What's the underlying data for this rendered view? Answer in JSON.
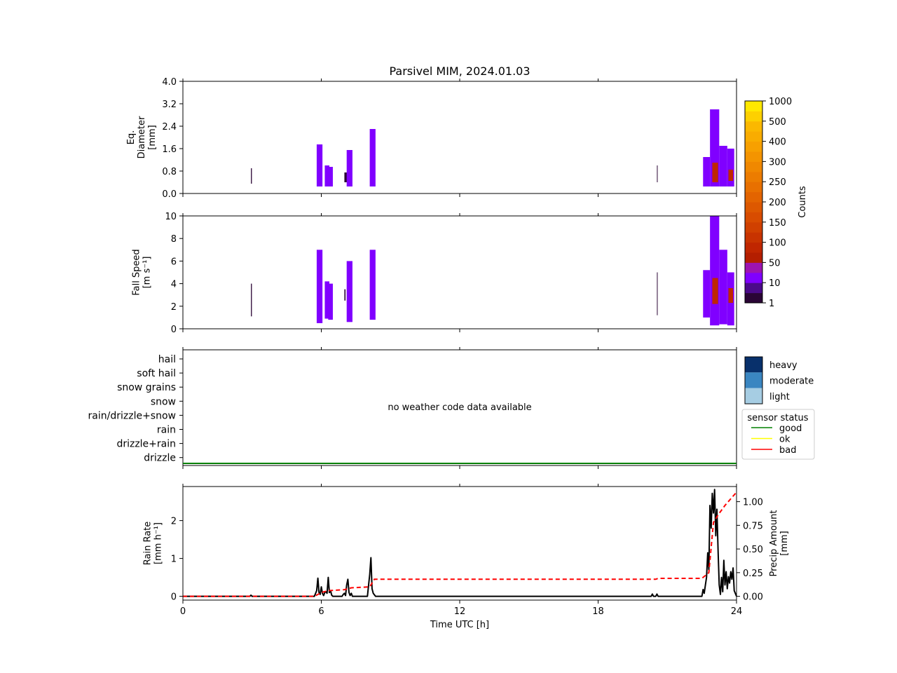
{
  "figure": {
    "title": "Parsivel MIM, 2024.01.03",
    "xlabel": "Time UTC [h]",
    "xticks": [
      0,
      6,
      12,
      18,
      24
    ],
    "xlim": [
      0,
      24
    ]
  },
  "colors": {
    "counts_colorbar": [
      "#2a0535",
      "#4b0a8a",
      "#8000ff",
      "#9d14b0",
      "#b41e00",
      "#c02600",
      "#c83300",
      "#d04000",
      "#d84c00",
      "#dd5800",
      "#e36400",
      "#e87000",
      "#ec7c00",
      "#f08800",
      "#f49400",
      "#f7a000",
      "#f9ac00",
      "#fbb800",
      "#fdd000",
      "#ffe800"
    ],
    "intensity": {
      "light": "#a6cde3",
      "moderate": "#3a86c1",
      "heavy": "#08306b"
    },
    "status": {
      "good": "#008000",
      "ok": "#ffff00",
      "bad": "#ff0000"
    }
  },
  "panels": {
    "diameter": {
      "ylabel": [
        "Eq.",
        "Diameter",
        "[mm]"
      ],
      "yticks": [
        "0.0",
        "0.8",
        "1.6",
        "2.4",
        "3.2",
        "4.0"
      ],
      "ylim": [
        0,
        4
      ]
    },
    "fallspeed": {
      "ylabel": [
        "Fall Speed",
        "[m s⁻¹]"
      ],
      "yticks": [
        "0",
        "2",
        "4",
        "6",
        "8",
        "10"
      ],
      "ylim": [
        0,
        10
      ]
    },
    "weather": {
      "categories": [
        "hail",
        "soft hail",
        "snow grains",
        "snow",
        "rain/drizzle+snow",
        "rain",
        "drizzle+rain",
        "drizzle"
      ],
      "no_data_text": "no weather code data available",
      "intensity_legend": [
        "heavy",
        "moderate",
        "light"
      ],
      "status_legend_title": "sensor status",
      "status_legend": [
        "good",
        "ok",
        "bad"
      ]
    },
    "rain": {
      "ylabel": [
        "Rain Rate",
        "[mm h⁻¹]"
      ],
      "yticks": [
        "0",
        "1",
        "2"
      ],
      "ylim": [
        -0.1,
        2.9
      ],
      "y2label": [
        "Precip Amount",
        "[mm]"
      ],
      "y2ticks": [
        "0.00",
        "0.25",
        "0.50",
        "0.75",
        "1.00"
      ],
      "y2lim": [
        -0.04,
        1.16
      ]
    }
  },
  "colorbar": {
    "label": "Counts",
    "ticks": [
      "1",
      "10",
      "50",
      "100",
      "150",
      "200",
      "250",
      "300",
      "400",
      "500",
      "1000"
    ]
  },
  "chart_data": [
    {
      "type": "heatmap",
      "title": "Parsivel MIM, 2024.01.03",
      "ylabel": "Eq. Diameter [mm]",
      "ylim": [
        0,
        4
      ],
      "xlim": [
        0,
        24
      ],
      "bursts": [
        {
          "x": [
            2.95,
            2.99
          ],
          "y": [
            0.35,
            0.9
          ],
          "level": 0
        },
        {
          "x": [
            5.8,
            6.05
          ],
          "y": [
            0.25,
            1.75
          ],
          "level": 2
        },
        {
          "x": [
            6.15,
            6.35
          ],
          "y": [
            0.25,
            1.0
          ],
          "level": 2
        },
        {
          "x": [
            6.3,
            6.5
          ],
          "y": [
            0.25,
            0.95
          ],
          "level": 2
        },
        {
          "x": [
            7.0,
            7.15
          ],
          "y": [
            0.4,
            0.75
          ],
          "level": 0
        },
        {
          "x": [
            7.1,
            7.35
          ],
          "y": [
            0.25,
            1.55
          ],
          "level": 2
        },
        {
          "x": [
            8.1,
            8.35
          ],
          "y": [
            0.25,
            2.3
          ],
          "level": 2
        },
        {
          "x": [
            20.55,
            20.58
          ],
          "y": [
            0.4,
            1.0
          ],
          "level": 0
        },
        {
          "x": [
            22.55,
            22.85
          ],
          "y": [
            0.25,
            1.3
          ],
          "level": 2
        },
        {
          "x": [
            22.85,
            23.25
          ],
          "y": [
            0.25,
            3.0
          ],
          "level": 2
        },
        {
          "x": [
            23.25,
            23.6
          ],
          "y": [
            0.25,
            1.7
          ],
          "level": 2
        },
        {
          "x": [
            23.6,
            23.9
          ],
          "y": [
            0.25,
            1.6
          ],
          "level": 2
        },
        {
          "x": [
            22.95,
            23.2
          ],
          "y": [
            0.4,
            1.1
          ],
          "level": 4
        },
        {
          "x": [
            23.65,
            23.85
          ],
          "y": [
            0.45,
            0.85
          ],
          "level": 4
        }
      ]
    },
    {
      "type": "heatmap",
      "ylabel": "Fall Speed [m s⁻¹]",
      "ylim": [
        0,
        10
      ],
      "xlim": [
        0,
        24
      ],
      "bursts": [
        {
          "x": [
            2.95,
            2.99
          ],
          "y": [
            1.1,
            4.0
          ],
          "level": 0
        },
        {
          "x": [
            5.8,
            6.05
          ],
          "y": [
            0.5,
            7.0
          ],
          "level": 2
        },
        {
          "x": [
            6.15,
            6.35
          ],
          "y": [
            0.9,
            4.2
          ],
          "level": 2
        },
        {
          "x": [
            6.3,
            6.5
          ],
          "y": [
            0.8,
            4.0
          ],
          "level": 2
        },
        {
          "x": [
            7.0,
            7.05
          ],
          "y": [
            2.5,
            3.5
          ],
          "level": 0
        },
        {
          "x": [
            7.1,
            7.35
          ],
          "y": [
            0.6,
            6.0
          ],
          "level": 2
        },
        {
          "x": [
            8.1,
            8.35
          ],
          "y": [
            0.8,
            7.0
          ],
          "level": 2
        },
        {
          "x": [
            20.55,
            20.58
          ],
          "y": [
            1.2,
            5.0
          ],
          "level": 0
        },
        {
          "x": [
            22.55,
            22.85
          ],
          "y": [
            1.0,
            5.2
          ],
          "level": 2
        },
        {
          "x": [
            22.85,
            23.25
          ],
          "y": [
            0.3,
            10.0
          ],
          "level": 2
        },
        {
          "x": [
            23.25,
            23.6
          ],
          "y": [
            0.4,
            7.0
          ],
          "level": 2
        },
        {
          "x": [
            23.6,
            23.9
          ],
          "y": [
            0.3,
            5.0
          ],
          "level": 2
        },
        {
          "x": [
            22.95,
            23.2
          ],
          "y": [
            2.2,
            4.5
          ],
          "level": 4
        },
        {
          "x": [
            23.65,
            23.85
          ],
          "y": [
            2.3,
            3.6
          ],
          "level": 4
        }
      ]
    },
    {
      "type": "line",
      "ylabel": "Rain Rate [mm h⁻¹]",
      "xlim": [
        0,
        24
      ],
      "series": [
        {
          "axis": "left",
          "style": "solid-black",
          "x": [
            0,
            2.9,
            2.95,
            3.0,
            5.7,
            5.8,
            5.85,
            5.9,
            5.95,
            6.0,
            6.05,
            6.1,
            6.15,
            6.2,
            6.25,
            6.3,
            6.35,
            6.4,
            6.45,
            6.5,
            6.55,
            6.9,
            6.95,
            7.0,
            7.05,
            7.1,
            7.15,
            7.2,
            7.25,
            7.3,
            7.35,
            8.0,
            8.05,
            8.1,
            8.15,
            8.2,
            8.25,
            8.3,
            8.35,
            20.3,
            20.35,
            20.4,
            20.45,
            20.5,
            20.55,
            20.6,
            22.5,
            22.55,
            22.6,
            22.65,
            22.7,
            22.75,
            22.8,
            22.85,
            22.9,
            22.95,
            23.0,
            23.05,
            23.1,
            23.15,
            23.2,
            23.25,
            23.3,
            23.35,
            23.4,
            23.45,
            23.5,
            23.55,
            23.6,
            23.65,
            23.7,
            23.75,
            23.8,
            23.85,
            23.9,
            24
          ],
          "y": [
            0,
            0,
            0.03,
            0,
            0,
            0.15,
            0.48,
            0.1,
            0.05,
            0.25,
            0.08,
            0.02,
            0.1,
            0.12,
            0.08,
            0.5,
            0.1,
            0.15,
            0.03,
            0,
            0,
            0,
            0.05,
            0.08,
            0.02,
            0.3,
            0.45,
            0.1,
            0.02,
            0.08,
            0,
            0,
            0.3,
            0.58,
            1.02,
            0.2,
            0.08,
            0.04,
            0,
            0,
            0.06,
            0,
            0,
            0,
            0.06,
            0,
            0,
            0.18,
            0.08,
            0.3,
            0.5,
            1.15,
            0.7,
            2.4,
            1.8,
            2.72,
            2.2,
            2.82,
            1.6,
            2.3,
            1.2,
            0.3,
            0.05,
            0.5,
            0.12,
            0.95,
            0.3,
            0.65,
            0.2,
            0.52,
            0.35,
            0.65,
            0.45,
            0.75,
            0.15,
            0
          ]
        },
        {
          "axis": "right",
          "style": "dashed-red",
          "x": [
            0,
            5.7,
            6.0,
            6.3,
            7.0,
            7.3,
            8.1,
            8.3,
            20.5,
            20.6,
            22.5,
            22.8,
            23.0,
            23.2,
            23.5,
            24
          ],
          "y": [
            0,
            0,
            0.04,
            0.06,
            0.07,
            0.09,
            0.1,
            0.18,
            0.18,
            0.19,
            0.19,
            0.25,
            0.78,
            0.86,
            0.96,
            1.1
          ]
        }
      ]
    }
  ]
}
